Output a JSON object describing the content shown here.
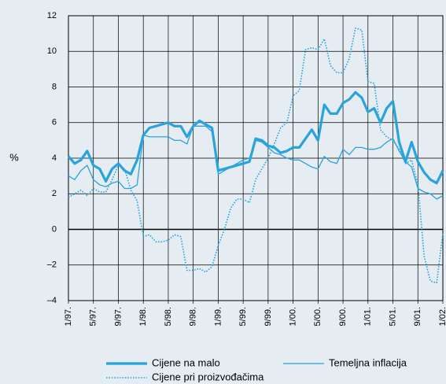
{
  "chart_data": {
    "type": "line",
    "ylabel": "%",
    "categories": [
      "1/97.",
      null,
      null,
      null,
      "5/97.",
      null,
      null,
      null,
      "9/97.",
      null,
      null,
      null,
      "1/98.",
      null,
      null,
      null,
      "5/98.",
      null,
      null,
      null,
      "9/98.",
      null,
      null,
      null,
      "1/99.",
      null,
      null,
      null,
      "5/99.",
      null,
      null,
      null,
      "9/99.",
      null,
      null,
      null,
      "1/00.",
      null,
      null,
      null,
      "5/00.",
      null,
      null,
      null,
      "9/00.",
      null,
      null,
      null,
      "1/01.",
      null,
      null,
      null,
      "5/01.",
      null,
      null,
      null,
      "9/01.",
      null,
      null,
      null,
      "1/02."
    ],
    "series": [
      {
        "name": "Cijene na malo",
        "color": "#29a3dc",
        "line_width": 3.2,
        "line_style": "solid",
        "values": [
          4.1,
          3.7,
          3.9,
          4.4,
          3.6,
          3.4,
          2.7,
          3.4,
          3.7,
          3.3,
          3.1,
          3.9,
          5.3,
          5.7,
          5.8,
          5.9,
          6.0,
          5.8,
          5.8,
          5.2,
          5.8,
          6.1,
          5.9,
          5.7,
          3.3,
          3.4,
          3.5,
          3.6,
          3.7,
          3.8,
          5.1,
          5.0,
          4.7,
          4.6,
          4.3,
          4.4,
          4.6,
          4.6,
          5.1,
          5.6,
          5.0,
          7.0,
          6.5,
          6.5,
          7.1,
          7.3,
          7.7,
          7.4,
          6.6,
          6.8,
          6.0,
          6.8,
          7.2,
          4.9,
          3.8,
          4.9,
          3.8,
          3.2,
          2.8,
          2.6,
          3.3
        ]
      },
      {
        "name": "Temeljna inflacija",
        "color": "#29a3dc",
        "line_width": 1.3,
        "line_style": "solid",
        "values": [
          3.0,
          2.8,
          3.3,
          3.6,
          2.8,
          2.5,
          2.4,
          2.6,
          2.7,
          2.3,
          2.3,
          2.5,
          5.3,
          5.2,
          5.2,
          5.2,
          5.2,
          5.0,
          5.0,
          4.8,
          5.8,
          5.8,
          5.8,
          5.5,
          3.1,
          3.3,
          3.5,
          3.7,
          3.9,
          4.0,
          5.0,
          4.9,
          4.6,
          4.3,
          4.2,
          4.0,
          3.9,
          3.9,
          3.7,
          3.5,
          3.4,
          4.1,
          3.8,
          3.7,
          4.5,
          4.2,
          4.6,
          4.6,
          4.5,
          4.5,
          4.6,
          4.9,
          5.1,
          4.4,
          3.8,
          3.5,
          2.3,
          2.1,
          2.0,
          1.7,
          1.9
        ]
      },
      {
        "name": "Cijene pri proizvođačima",
        "color": "#29a3dc",
        "line_width": 1.6,
        "line_style": "dotted",
        "values": [
          1.8,
          2.0,
          2.2,
          1.9,
          2.3,
          2.1,
          2.1,
          2.8,
          3.6,
          3.4,
          2.2,
          1.6,
          -0.4,
          -0.3,
          -0.7,
          -0.7,
          -0.6,
          -0.3,
          -0.4,
          -2.3,
          -2.3,
          -2.2,
          -2.4,
          -2.1,
          -0.9,
          0.0,
          1.2,
          1.7,
          1.7,
          1.5,
          2.8,
          3.4,
          4.0,
          4.8,
          5.7,
          6.0,
          7.5,
          7.8,
          10.1,
          10.2,
          10.1,
          10.7,
          9.2,
          8.8,
          8.8,
          9.6,
          11.3,
          11.2,
          8.3,
          8.2,
          5.6,
          5.2,
          5.0,
          4.5,
          3.7,
          3.9,
          2.5,
          -1.5,
          -2.9,
          -3.0,
          -0.2
        ]
      }
    ],
    "ylim": [
      -4,
      12
    ],
    "yticks": [
      {
        "value": -4,
        "label": "–4"
      },
      {
        "value": -2,
        "label": "–2"
      },
      0,
      2,
      4,
      6,
      8,
      10,
      12
    ],
    "grid": true,
    "legend": "bottom"
  }
}
